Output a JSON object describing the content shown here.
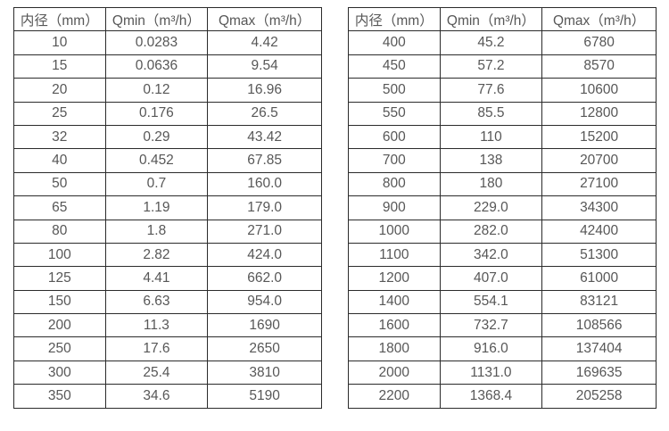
{
  "colors": {
    "border": "#2b2b2b",
    "text": "#575757",
    "background": "#ffffff"
  },
  "tables": [
    {
      "name": "flow-table-small-diameters",
      "headers": [
        "内径（mm）",
        "Qmin（m³/h）",
        "Qmax（m³/h）"
      ],
      "rows": [
        [
          "10",
          "0.0283",
          "4.42"
        ],
        [
          "15",
          "0.0636",
          "9.54"
        ],
        [
          "20",
          "0.12",
          "16.96"
        ],
        [
          "25",
          "0.176",
          "26.5"
        ],
        [
          "32",
          "0.29",
          "43.42"
        ],
        [
          "40",
          "0.452",
          "67.85"
        ],
        [
          "50",
          "0.7",
          "160.0"
        ],
        [
          "65",
          "1.19",
          "179.0"
        ],
        [
          "80",
          "1.8",
          "271.0"
        ],
        [
          "100",
          "2.82",
          "424.0"
        ],
        [
          "125",
          "4.41",
          "662.0"
        ],
        [
          "150",
          "6.63",
          "954.0"
        ],
        [
          "200",
          "11.3",
          "1690"
        ],
        [
          "250",
          "17.6",
          "2650"
        ],
        [
          "300",
          "25.4",
          "3810"
        ],
        [
          "350",
          "34.6",
          "5190"
        ]
      ]
    },
    {
      "name": "flow-table-large-diameters",
      "headers": [
        "内径（mm）",
        "Qmin（m³/h）",
        "Qmax（m³/h）"
      ],
      "rows": [
        [
          "400",
          "45.2",
          "6780"
        ],
        [
          "450",
          "57.2",
          "8570"
        ],
        [
          "500",
          "77.6",
          "10600"
        ],
        [
          "550",
          "85.5",
          "12800"
        ],
        [
          "600",
          "110",
          "15200"
        ],
        [
          "700",
          "138",
          "20700"
        ],
        [
          "800",
          "180",
          "27100"
        ],
        [
          "900",
          "229.0",
          "34300"
        ],
        [
          "1000",
          "282.0",
          "42400"
        ],
        [
          "1100",
          "342.0",
          "51300"
        ],
        [
          "1200",
          "407.0",
          "61000"
        ],
        [
          "1400",
          "554.1",
          "83121"
        ],
        [
          "1600",
          "732.7",
          "108566"
        ],
        [
          "1800",
          "916.0",
          "137404"
        ],
        [
          "2000",
          "1131.0",
          "169635"
        ],
        [
          "2200",
          "1368.4",
          "205258"
        ]
      ]
    }
  ]
}
